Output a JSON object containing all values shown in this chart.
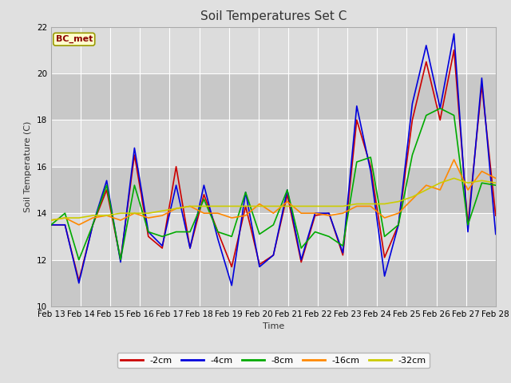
{
  "title": "Soil Temperatures Set C",
  "xlabel": "Time",
  "ylabel": "Soil Temperature (C)",
  "annotation": "BC_met",
  "ylim": [
    10,
    22
  ],
  "series": {
    "-2cm": {
      "color": "#cc0000",
      "lw": 1.2,
      "data": [
        13.5,
        13.5,
        11.1,
        13.5,
        15.0,
        12.0,
        16.5,
        13.0,
        12.5,
        16.0,
        12.5,
        14.8,
        13.2,
        11.7,
        14.3,
        11.8,
        12.2,
        14.8,
        11.9,
        13.9,
        14.0,
        12.2,
        18.0,
        16.0,
        12.1,
        13.5,
        18.0,
        20.5,
        18.0,
        21.0,
        13.5,
        19.5,
        13.9
      ]
    },
    "-4cm": {
      "color": "#0000dd",
      "lw": 1.2,
      "data": [
        13.5,
        13.5,
        11.0,
        13.5,
        15.4,
        11.9,
        16.8,
        13.2,
        12.6,
        15.2,
        12.5,
        15.2,
        12.9,
        10.9,
        14.9,
        11.7,
        12.2,
        15.0,
        12.0,
        14.0,
        14.0,
        12.3,
        18.6,
        15.8,
        11.3,
        13.5,
        18.7,
        21.2,
        18.5,
        21.7,
        13.2,
        19.8,
        13.1
      ]
    },
    "-8cm": {
      "color": "#00aa00",
      "lw": 1.2,
      "data": [
        13.5,
        14.0,
        12.0,
        13.5,
        15.2,
        12.0,
        15.2,
        13.2,
        13.0,
        13.2,
        13.2,
        14.6,
        13.2,
        13.0,
        14.9,
        13.1,
        13.5,
        15.0,
        12.5,
        13.2,
        13.0,
        12.6,
        16.2,
        16.4,
        13.0,
        13.5,
        16.5,
        18.2,
        18.5,
        18.2,
        13.5,
        15.3,
        15.2
      ]
    },
    "-16cm": {
      "color": "#ff8800",
      "lw": 1.2,
      "data": [
        13.7,
        13.8,
        13.5,
        13.8,
        13.9,
        13.7,
        14.0,
        13.8,
        13.9,
        14.2,
        14.3,
        14.0,
        14.0,
        13.8,
        13.9,
        14.4,
        14.0,
        14.5,
        14.0,
        14.0,
        13.9,
        14.0,
        14.3,
        14.3,
        13.8,
        14.0,
        14.6,
        15.2,
        15.0,
        16.3,
        15.0,
        15.8,
        15.5
      ]
    },
    "-32cm": {
      "color": "#cccc00",
      "lw": 1.2,
      "data": [
        13.7,
        13.8,
        13.8,
        13.9,
        13.9,
        14.0,
        14.0,
        14.0,
        14.1,
        14.2,
        14.3,
        14.3,
        14.3,
        14.3,
        14.3,
        14.3,
        14.3,
        14.3,
        14.3,
        14.3,
        14.3,
        14.3,
        14.4,
        14.4,
        14.4,
        14.5,
        14.7,
        15.0,
        15.3,
        15.5,
        15.3,
        15.4,
        15.3
      ]
    }
  },
  "x_tick_labels": [
    "Feb 13",
    "Feb 14",
    "Feb 15",
    "Feb 16",
    "Feb 17",
    "Feb 18",
    "Feb 19",
    "Feb 20",
    "Feb 21",
    "Feb 22",
    "Feb 23",
    "Feb 24",
    "Feb 25",
    "Feb 26",
    "Feb 27",
    "Feb 28"
  ],
  "fig_bg_color": "#e0e0e0",
  "plot_bg_color": "#d0d0d0",
  "stripe_light": "#dcdcdc",
  "stripe_dark": "#c8c8c8",
  "grid_color": "#ffffff",
  "title_fontsize": 11,
  "label_fontsize": 8,
  "tick_fontsize": 7.5,
  "annot_fontsize": 8,
  "legend_fontsize": 8
}
